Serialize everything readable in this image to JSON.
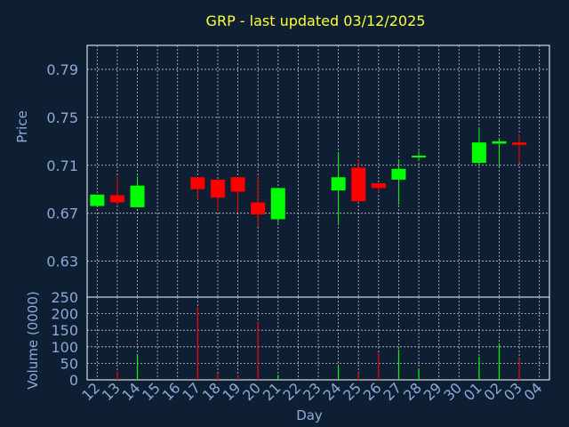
{
  "chart_data": [
    {
      "type": "candlestick",
      "title": "GRP - last updated 03/12/2025",
      "ylabel": "Price",
      "ylim": [
        0.6,
        0.81
      ],
      "yticks": [
        "0.63",
        "0.67",
        "0.71",
        "0.75",
        "0.79"
      ],
      "grid": true,
      "up_color": "#00ff00",
      "down_color": "#ff0000",
      "candles": [
        {
          "day": "12",
          "open": 0.676,
          "high": 0.6855,
          "low": 0.676,
          "close": 0.6855
        },
        {
          "day": "13",
          "open": 0.685,
          "high": 0.701,
          "low": 0.677,
          "close": 0.679
        },
        {
          "day": "14",
          "open": 0.675,
          "high": 0.701,
          "low": 0.675,
          "close": 0.693
        },
        {
          "day": "17",
          "open": 0.7,
          "high": 0.7,
          "low": 0.681,
          "close": 0.69
        },
        {
          "day": "18",
          "open": 0.698,
          "high": 0.698,
          "low": 0.672,
          "close": 0.683
        },
        {
          "day": "19",
          "open": 0.7,
          "high": 0.7,
          "low": 0.671,
          "close": 0.688
        },
        {
          "day": "20",
          "open": 0.679,
          "high": 0.701,
          "low": 0.659,
          "close": 0.669
        },
        {
          "day": "21",
          "open": 0.665,
          "high": 0.691,
          "low": 0.662,
          "close": 0.691
        },
        {
          "day": "24",
          "open": 0.689,
          "high": 0.72,
          "low": 0.66,
          "close": 0.7
        },
        {
          "day": "25",
          "open": 0.708,
          "high": 0.715,
          "low": 0.679,
          "close": 0.68
        },
        {
          "day": "26",
          "open": 0.695,
          "high": 0.695,
          "low": 0.687,
          "close": 0.691
        },
        {
          "day": "27",
          "open": 0.698,
          "high": 0.715,
          "low": 0.677,
          "close": 0.707
        },
        {
          "day": "28",
          "open": 0.717,
          "high": 0.722,
          "low": 0.714,
          "close": 0.718
        },
        {
          "day": "01",
          "open": 0.712,
          "high": 0.741,
          "low": 0.71,
          "close": 0.729
        },
        {
          "day": "02",
          "open": 0.728,
          "high": 0.732,
          "low": 0.709,
          "close": 0.73
        },
        {
          "day": "03",
          "open": 0.729,
          "high": 0.736,
          "low": 0.712,
          "close": 0.727
        }
      ]
    },
    {
      "type": "bar",
      "ylabel": "Volume (0000)",
      "xlabel": "Day",
      "ylim": [
        0,
        250
      ],
      "yticks": [
        "0",
        "50",
        "100",
        "150",
        "200",
        "250"
      ],
      "categories": [
        "12",
        "13",
        "14",
        "15",
        "16",
        "17",
        "18",
        "19",
        "20",
        "21",
        "22",
        "23",
        "24",
        "25",
        "26",
        "27",
        "28",
        "29",
        "30",
        "01",
        "02",
        "03",
        "04"
      ],
      "grid": true,
      "bars": [
        {
          "day": "13",
          "value": 25,
          "color": "#ff0000"
        },
        {
          "day": "14",
          "value": 78,
          "color": "#00ff00"
        },
        {
          "day": "17",
          "value": 220,
          "color": "#ff0000"
        },
        {
          "day": "18",
          "value": 20,
          "color": "#ff0000"
        },
        {
          "day": "19",
          "value": 12,
          "color": "#ff0000"
        },
        {
          "day": "20",
          "value": 175,
          "color": "#ff0000"
        },
        {
          "day": "21",
          "value": 15,
          "color": "#00ff00"
        },
        {
          "day": "24",
          "value": 40,
          "color": "#00ff00"
        },
        {
          "day": "25",
          "value": 22,
          "color": "#ff0000"
        },
        {
          "day": "26",
          "value": 82,
          "color": "#ff0000"
        },
        {
          "day": "27",
          "value": 92,
          "color": "#00ff00"
        },
        {
          "day": "28",
          "value": 35,
          "color": "#00ff00"
        },
        {
          "day": "01",
          "value": 70,
          "color": "#00ff00"
        },
        {
          "day": "02",
          "value": 110,
          "color": "#00ff00"
        },
        {
          "day": "03",
          "value": 65,
          "color": "#ff0000"
        }
      ]
    }
  ]
}
